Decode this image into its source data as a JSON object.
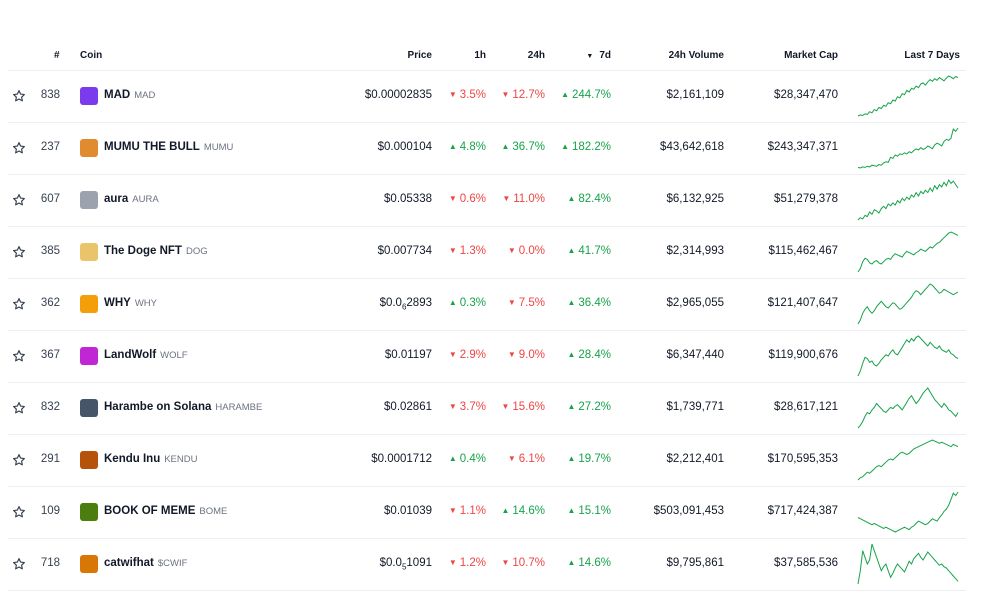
{
  "header": {
    "rank": "#",
    "coin": "Coin",
    "price": "Price",
    "h1": "1h",
    "h24": "24h",
    "d7_arrow": "▼",
    "d7": "7d",
    "volume": "24h Volume",
    "mcap": "Market Cap",
    "spark": "Last 7 Days"
  },
  "colors": {
    "up": "#16a34a",
    "down": "#ef4444"
  },
  "rows": [
    {
      "rank": "838",
      "name": "MAD",
      "symbol": "MAD",
      "logo": "mad-logo-icon",
      "logo_color": "#7c3aed",
      "price_main": "$0.00002835",
      "price_sub": "",
      "price_tail": "",
      "h1": "3.5%",
      "h1_dir": "down",
      "h24": "12.7%",
      "h24_dir": "down",
      "d7": "244.7%",
      "d7_dir": "up",
      "volume": "$2,161,109",
      "mcap": "$28,347,470",
      "spark": [
        10,
        12,
        11,
        14,
        13,
        18,
        16,
        22,
        20,
        26,
        24,
        30,
        28,
        35,
        33,
        40,
        38,
        46,
        44,
        52,
        50,
        58,
        55,
        62,
        60,
        66,
        63,
        70,
        72,
        68,
        74,
        78,
        75,
        80,
        77,
        82,
        79,
        76,
        81,
        85,
        83,
        80,
        84,
        82
      ]
    },
    {
      "rank": "237",
      "name": "MUMU THE BULL",
      "symbol": "MUMU",
      "logo": "bull-logo-icon",
      "logo_color": "#e08b2f",
      "price_main": "$0.000104",
      "price_sub": "",
      "price_tail": "",
      "h1": "4.8%",
      "h1_dir": "up",
      "h24": "36.7%",
      "h24_dir": "up",
      "d7": "182.2%",
      "d7_dir": "up",
      "volume": "$43,642,618",
      "mcap": "$243,347,371",
      "spark": [
        12,
        11,
        13,
        12,
        14,
        13,
        16,
        15,
        14,
        17,
        16,
        20,
        22,
        21,
        30,
        28,
        34,
        32,
        36,
        35,
        38,
        36,
        40,
        38,
        42,
        45,
        43,
        47,
        44,
        46,
        50,
        48,
        45,
        52,
        55,
        53,
        50,
        58,
        62,
        60,
        64,
        80,
        76,
        82
      ]
    },
    {
      "rank": "607",
      "name": "aura",
      "symbol": "AURA",
      "logo": "aura-logo-icon",
      "logo_color": "#9ca3af",
      "price_main": "$0.05338",
      "price_sub": "",
      "price_tail": "",
      "h1": "0.6%",
      "h1_dir": "down",
      "h24": "11.0%",
      "h24_dir": "down",
      "d7": "82.4%",
      "d7_dir": "up",
      "volume": "$6,132,925",
      "mcap": "$51,279,378",
      "spark": [
        10,
        14,
        12,
        18,
        16,
        24,
        20,
        28,
        26,
        22,
        30,
        34,
        30,
        38,
        35,
        40,
        36,
        44,
        40,
        48,
        44,
        50,
        46,
        54,
        50,
        58,
        52,
        60,
        56,
        62,
        58,
        66,
        60,
        70,
        64,
        72,
        68,
        76,
        70,
        80,
        74,
        78,
        72,
        66
      ]
    },
    {
      "rank": "385",
      "name": "The Doge NFT",
      "symbol": "DOG",
      "logo": "doge-logo-icon",
      "logo_color": "#e9c46a",
      "price_main": "$0.007734",
      "price_sub": "",
      "price_tail": "",
      "h1": "1.3%",
      "h1_dir": "down",
      "h24": "0.0%",
      "h24_dir": "down",
      "d7": "41.7%",
      "d7_dir": "up",
      "volume": "$2,314,993",
      "mcap": "$115,462,467",
      "spark": [
        12,
        18,
        30,
        36,
        34,
        28,
        26,
        30,
        32,
        28,
        26,
        30,
        34,
        36,
        34,
        40,
        44,
        42,
        40,
        38,
        44,
        48,
        46,
        44,
        42,
        46,
        48,
        52,
        50,
        48,
        52,
        56,
        54,
        58,
        62,
        64,
        68,
        72,
        76,
        80,
        82,
        80,
        78,
        76
      ]
    },
    {
      "rank": "362",
      "name": "WHY",
      "symbol": "WHY",
      "logo": "why-logo-icon",
      "logo_color": "#f59e0b",
      "price_main": "$0.0",
      "price_sub": "6",
      "price_tail": "2893",
      "h1": "0.3%",
      "h1_dir": "up",
      "h24": "7.5%",
      "h24_dir": "down",
      "d7": "36.4%",
      "d7_dir": "up",
      "volume": "$2,965,055",
      "mcap": "$121,407,647",
      "spark": [
        14,
        20,
        30,
        36,
        40,
        34,
        30,
        34,
        40,
        44,
        48,
        44,
        40,
        38,
        42,
        46,
        44,
        40,
        36,
        38,
        42,
        46,
        50,
        54,
        60,
        64,
        62,
        58,
        62,
        66,
        70,
        74,
        72,
        68,
        64,
        60,
        62,
        66,
        64,
        62,
        60,
        58,
        60,
        62
      ]
    },
    {
      "rank": "367",
      "name": "LandWolf",
      "symbol": "WOLF",
      "logo": "wolf-logo-icon",
      "logo_color": "#c026d3",
      "price_main": "$0.01197",
      "price_sub": "",
      "price_tail": "",
      "h1": "2.9%",
      "h1_dir": "down",
      "h24": "9.0%",
      "h24_dir": "down",
      "d7": "28.4%",
      "d7_dir": "up",
      "volume": "$6,347,440",
      "mcap": "$119,900,676",
      "spark": [
        10,
        18,
        30,
        40,
        38,
        32,
        34,
        28,
        26,
        30,
        36,
        40,
        44,
        42,
        48,
        52,
        46,
        44,
        50,
        56,
        62,
        68,
        64,
        70,
        66,
        72,
        74,
        70,
        66,
        62,
        58,
        64,
        60,
        56,
        54,
        58,
        52,
        50,
        48,
        52,
        46,
        44,
        40,
        38
      ]
    },
    {
      "rank": "832",
      "name": "Harambe on Solana",
      "symbol": "HARAMBE",
      "logo": "harambe-logo-icon",
      "logo_color": "#475569",
      "price_main": "$0.02861",
      "price_sub": "",
      "price_tail": "",
      "h1": "3.7%",
      "h1_dir": "down",
      "h24": "15.6%",
      "h24_dir": "down",
      "d7": "27.2%",
      "d7_dir": "up",
      "volume": "$1,739,771",
      "mcap": "$28,617,121",
      "spark": [
        12,
        16,
        22,
        30,
        36,
        34,
        40,
        44,
        50,
        46,
        42,
        38,
        36,
        40,
        44,
        42,
        46,
        48,
        44,
        40,
        46,
        52,
        58,
        62,
        56,
        50,
        54,
        60,
        66,
        70,
        74,
        68,
        62,
        56,
        52,
        48,
        44,
        50,
        46,
        40,
        38,
        34,
        30,
        36
      ]
    },
    {
      "rank": "291",
      "name": "Kendu Inu",
      "symbol": "KENDU",
      "logo": "kendu-logo-icon",
      "logo_color": "#b45309",
      "price_main": "$0.0001712",
      "price_sub": "",
      "price_tail": "",
      "h1": "0.4%",
      "h1_dir": "up",
      "h24": "6.1%",
      "h24_dir": "down",
      "d7": "19.7%",
      "d7_dir": "up",
      "volume": "$2,212,401",
      "mcap": "$170,595,353",
      "spark": [
        10,
        14,
        16,
        20,
        24,
        22,
        26,
        30,
        34,
        36,
        34,
        38,
        42,
        46,
        48,
        46,
        50,
        54,
        58,
        60,
        58,
        56,
        58,
        62,
        66,
        68,
        70,
        72,
        74,
        76,
        78,
        80,
        82,
        80,
        78,
        76,
        78,
        76,
        74,
        72,
        70,
        74,
        72,
        70
      ]
    },
    {
      "rank": "109",
      "name": "BOOK OF MEME",
      "symbol": "BOME",
      "logo": "bome-logo-icon",
      "logo_color": "#4d7c0f",
      "price_main": "$0.01039",
      "price_sub": "",
      "price_tail": "",
      "h1": "1.1%",
      "h1_dir": "down",
      "h24": "14.6%",
      "h24_dir": "up",
      "d7": "15.1%",
      "d7_dir": "up",
      "volume": "$503,091,453",
      "mcap": "$717,424,387",
      "spark": [
        40,
        38,
        36,
        34,
        32,
        30,
        28,
        30,
        28,
        26,
        24,
        22,
        24,
        22,
        20,
        18,
        16,
        18,
        20,
        22,
        24,
        22,
        20,
        24,
        26,
        30,
        34,
        32,
        30,
        28,
        30,
        34,
        38,
        36,
        34,
        40,
        44,
        50,
        54,
        60,
        70,
        80,
        76,
        82
      ]
    },
    {
      "rank": "718",
      "name": "catwifhat",
      "symbol": "$CWIF",
      "logo": "cat-logo-icon",
      "logo_color": "#d97706",
      "price_main": "$0.0",
      "price_sub": "5",
      "price_tail": "1091",
      "h1": "1.2%",
      "h1_dir": "down",
      "h24": "10.7%",
      "h24_dir": "down",
      "d7": "14.6%",
      "d7_dir": "up",
      "volume": "$9,795,861",
      "mcap": "$37,585,536",
      "spark": [
        10,
        30,
        60,
        50,
        40,
        46,
        70,
        60,
        50,
        40,
        30,
        36,
        40,
        30,
        20,
        26,
        34,
        40,
        36,
        32,
        28,
        36,
        44,
        40,
        48,
        52,
        56,
        50,
        46,
        52,
        58,
        54,
        50,
        46,
        42,
        38,
        40,
        36,
        34,
        30,
        26,
        22,
        18,
        14
      ]
    }
  ]
}
